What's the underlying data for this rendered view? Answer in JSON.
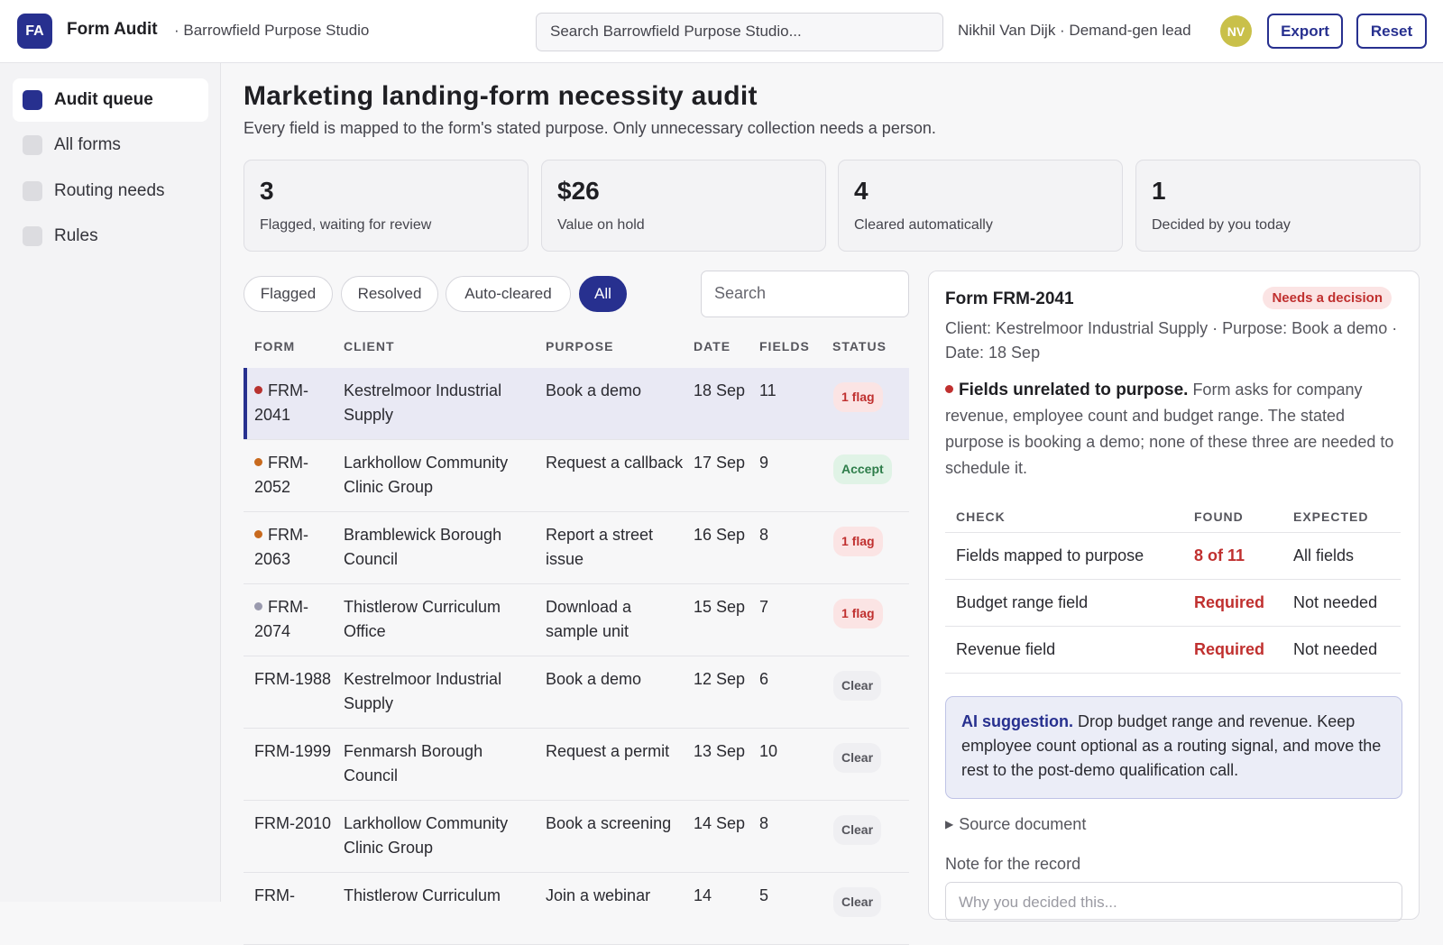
{
  "header": {
    "logo": "FA",
    "app_title": "Form Audit",
    "org": "· Barrowfield Purpose Studio",
    "search_placeholder": "Search Barrowfield Purpose Studio...",
    "user": "Nikhil Van Dijk · Demand-gen lead",
    "avatar": "NV",
    "export_label": "Export",
    "reset_label": "Reset"
  },
  "sidebar": {
    "items": [
      {
        "label": "Audit queue",
        "active": true
      },
      {
        "label": "All forms",
        "active": false
      },
      {
        "label": "Routing needs",
        "active": false
      },
      {
        "label": "Rules",
        "active": false
      }
    ]
  },
  "main": {
    "title": "Marketing landing-form necessity audit",
    "subtitle": "Every field is mapped to the form's stated purpose. Only unnecessary collection needs a person.",
    "stats": [
      {
        "value": "3",
        "label": "Flagged, waiting for review"
      },
      {
        "value": "$26",
        "label": "Value on hold"
      },
      {
        "value": "4",
        "label": "Cleared automatically"
      },
      {
        "value": "1",
        "label": "Decided by you today"
      }
    ],
    "filters": [
      "Flagged",
      "Resolved",
      "Auto-cleared",
      "All"
    ],
    "active_filter": "All",
    "search_placeholder": "Search",
    "columns": [
      "FORM",
      "CLIENT",
      "PURPOSE",
      "DATE",
      "FIELDS",
      "STATUS"
    ],
    "rows": [
      {
        "form": "FRM-2041",
        "client": "Kestrelmoor Industrial Supply",
        "purpose": "Book a demo",
        "date": "18 Sep",
        "fields": "11",
        "status": "1 flag",
        "dot": "#b8322f"
      },
      {
        "form": "FRM-2052",
        "client": "Larkhollow Community Clinic Group",
        "purpose": "Request a callback",
        "date": "17 Sep",
        "fields": "9",
        "status": "Accept",
        "dot": "#c86a1e"
      },
      {
        "form": "FRM-2063",
        "client": "Bramblewick Borough Council",
        "purpose": "Report a street issue",
        "date": "16 Sep",
        "fields": "8",
        "status": "1 flag",
        "dot": "#c86a1e"
      },
      {
        "form": "FRM-2074",
        "client": "Thistlerow Curriculum Office",
        "purpose": "Download a sample unit",
        "date": "15 Sep",
        "fields": "7",
        "status": "1 flag",
        "dot": "#9a9aae"
      },
      {
        "form": "FRM-1988",
        "client": "Kestrelmoor Industrial Supply",
        "purpose": "Book a demo",
        "date": "12 Sep",
        "fields": "6",
        "status": "Clear",
        "dot": ""
      },
      {
        "form": "FRM-1999",
        "client": "Fenmarsh Borough Council",
        "purpose": "Request a permit",
        "date": "13 Sep",
        "fields": "10",
        "status": "Clear",
        "dot": ""
      },
      {
        "form": "FRM-2010",
        "client": "Larkhollow Community Clinic Group",
        "purpose": "Book a screening",
        "date": "14 Sep",
        "fields": "8",
        "status": "Clear",
        "dot": ""
      },
      {
        "form": "FRM-",
        "client": "Thistlerow Curriculum",
        "purpose": "Join a webinar",
        "date": "14",
        "fields": "5",
        "status": "Clear",
        "dot": ""
      }
    ]
  },
  "panel": {
    "title": "Form FRM-2041",
    "badge": "Needs a decision",
    "meta": "Client: Kestrelmoor Industrial Supply · Purpose: Book a demo · Date: 18 Sep",
    "finding_title": "Fields unrelated to purpose.",
    "finding_text": "Form asks for company revenue, employee count and budget range. The stated purpose is booking a demo; none of these three are needed to schedule it.",
    "check_columns": [
      "CHECK",
      "FOUND",
      "EXPECTED"
    ],
    "checks": [
      {
        "check": "Fields mapped to purpose",
        "found": "8 of 11",
        "expected": "All fields"
      },
      {
        "check": "Budget range field",
        "found": "Required",
        "expected": "Not needed"
      },
      {
        "check": "Revenue field",
        "found": "Required",
        "expected": "Not needed"
      }
    ],
    "ai_title": "AI suggestion.",
    "ai_text": "Drop budget range and revenue. Keep employee count optional as a routing signal, and move the rest to the post-demo qualification call.",
    "source_label": "Source document",
    "note_label": "Note for the record",
    "note_placeholder": "Why you decided this..."
  },
  "colors": {
    "accent": "#27308f",
    "flag": "#c0302f",
    "accept": "#2e7d4a"
  }
}
